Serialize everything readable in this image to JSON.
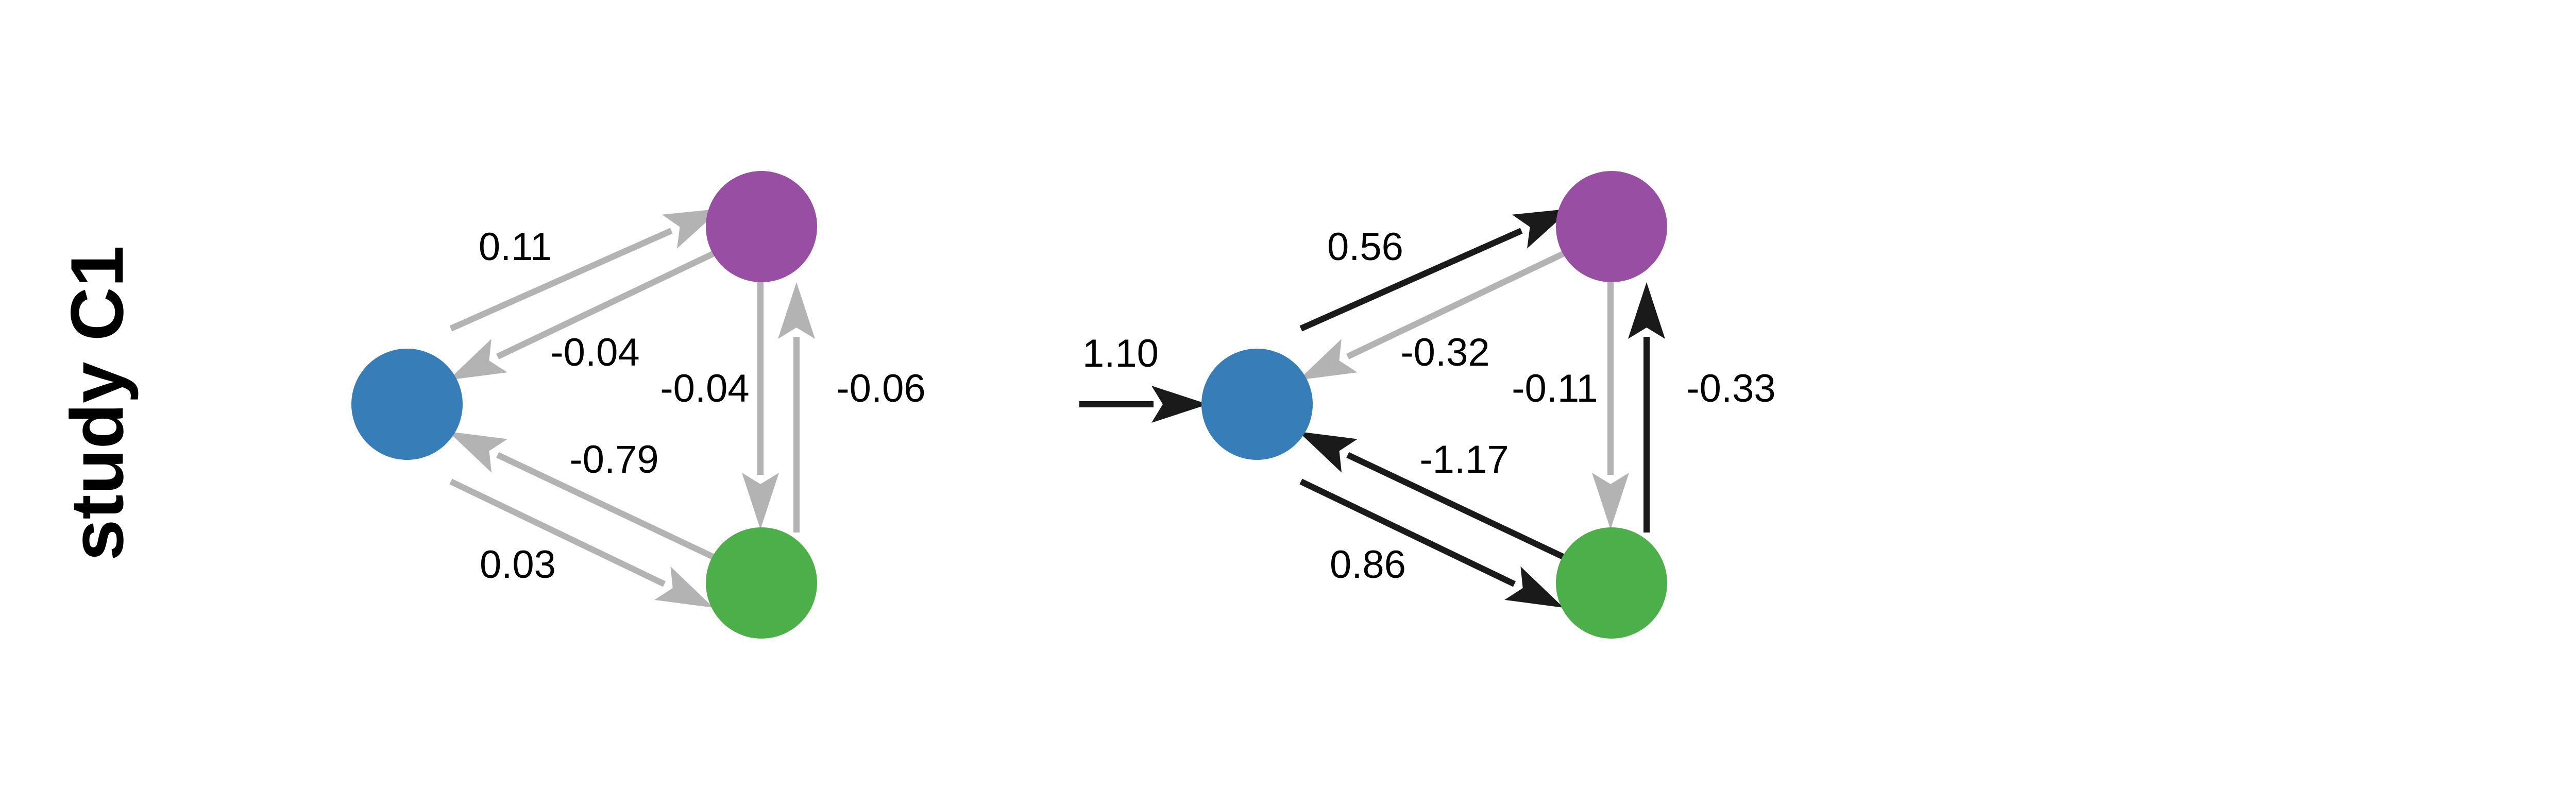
{
  "row_label": "study C1",
  "colors": {
    "node_a": "#377eb8",
    "node_b": "#984ea3",
    "node_c": "#4daf4a",
    "edge_muted": "#b3b3b3",
    "edge_strong": "#1a1a1a"
  },
  "panels": [
    {
      "edges": [
        {
          "id": "a-to-b",
          "label": "0.11",
          "style": "muted"
        },
        {
          "id": "b-to-a",
          "label": "-0.04",
          "style": "muted"
        },
        {
          "id": "b-to-c",
          "label": "-0.04",
          "style": "muted"
        },
        {
          "id": "c-to-b",
          "label": "-0.06",
          "style": "muted"
        },
        {
          "id": "c-to-a",
          "label": "-0.79",
          "style": "muted"
        },
        {
          "id": "a-to-c",
          "label": "0.03",
          "style": "muted"
        }
      ]
    },
    {
      "input_label": "1.10",
      "edges": [
        {
          "id": "a-to-b",
          "label": "0.56",
          "style": "strong"
        },
        {
          "id": "b-to-a",
          "label": "-0.32",
          "style": "muted"
        },
        {
          "id": "b-to-c",
          "label": "-0.11",
          "style": "muted"
        },
        {
          "id": "c-to-b",
          "label": "-0.33",
          "style": "strong"
        },
        {
          "id": "c-to-a",
          "label": "-1.17",
          "style": "strong"
        },
        {
          "id": "a-to-c",
          "label": "0.86",
          "style": "strong"
        }
      ]
    }
  ]
}
